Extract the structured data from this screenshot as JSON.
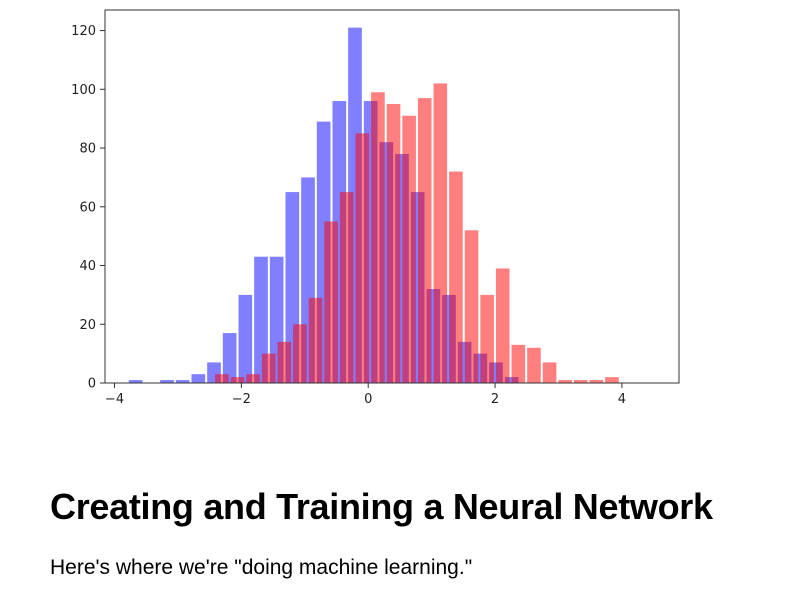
{
  "chart_data": {
    "type": "histogram",
    "xlim": [
      -4.15,
      4.9
    ],
    "ylim": [
      0,
      127
    ],
    "x_ticks": [
      -4,
      -2,
      0,
      2,
      4
    ],
    "x_tick_labels": [
      "−4",
      "−2",
      "0",
      "2",
      "4"
    ],
    "y_ticks": [
      0,
      20,
      40,
      60,
      80,
      100,
      120
    ],
    "y_tick_labels": [
      "0",
      "20",
      "40",
      "60",
      "80",
      "100",
      "120"
    ],
    "grid": false,
    "series": [
      {
        "color": "#0000ff",
        "opacity": 0.5,
        "bin_width": 0.247,
        "bin_starts": [
          -3.79,
          -3.543,
          -3.296,
          -3.049,
          -2.802,
          -2.555,
          -2.308,
          -2.061,
          -1.814,
          -1.567,
          -1.32,
          -1.073,
          -0.826,
          -0.579,
          -0.332,
          -0.085,
          0.162,
          0.409,
          0.656,
          0.903,
          1.15,
          1.397,
          1.644,
          1.891,
          2.138,
          2.385,
          2.632
        ],
        "values": [
          1,
          0,
          1,
          1,
          3,
          7,
          17,
          30,
          43,
          43,
          65,
          70,
          89,
          96,
          121,
          96,
          82,
          78,
          65,
          32,
          30,
          14,
          10,
          7,
          2,
          0,
          0
        ]
      },
      {
        "color": "#ff0000",
        "opacity": 0.5,
        "bin_width": 0.246,
        "bin_starts": [
          -2.43,
          -2.184,
          -1.938,
          -1.692,
          -1.446,
          -1.2,
          -0.954,
          -0.708,
          -0.462,
          -0.216,
          0.03,
          0.276,
          0.522,
          0.768,
          1.014,
          1.26,
          1.506,
          1.752,
          1.998,
          2.244,
          2.49,
          2.736,
          2.982,
          3.228,
          3.474,
          3.72,
          3.966,
          4.212,
          4.458
        ],
        "values": [
          3,
          2,
          3,
          10,
          14,
          20,
          29,
          55,
          65,
          85,
          99,
          95,
          91,
          97,
          102,
          72,
          52,
          30,
          39,
          13,
          12,
          7,
          1,
          1,
          1,
          2,
          0,
          0,
          0
        ]
      }
    ]
  },
  "text": {
    "heading": "Creating and Training a Neural Network",
    "body": "Here's where we're \"doing machine learning.\""
  }
}
